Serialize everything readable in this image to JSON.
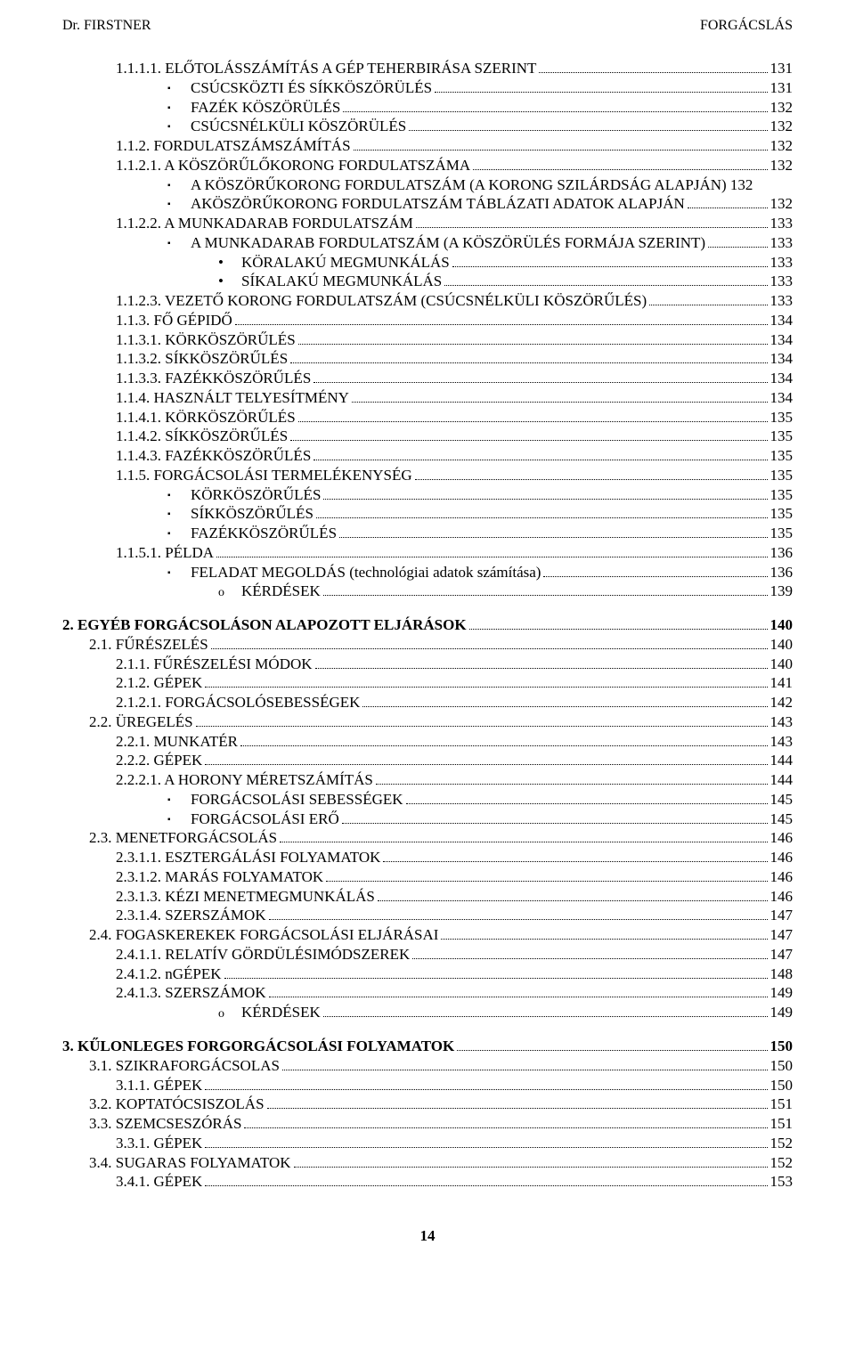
{
  "header": {
    "left": "Dr. FIRSTNER",
    "right": "FORGÁCSLÁS"
  },
  "footer": "14",
  "lines": [
    {
      "indent": "in0",
      "num": "1.1.1.1.",
      "title": "ELŐTOLÁSSZÁMÍTÁS A GÉP TEHERBIRÁSA SZERINT",
      "page": "131"
    },
    {
      "indent": "in2",
      "marker": "sq",
      "title": "CSÚCSKÖZTI ÉS SÍKKÖSZÖRÜLÉS",
      "page": "131"
    },
    {
      "indent": "in2",
      "marker": "sq",
      "title": "FAZÉK KÖSZÖRÜLÉS",
      "page": "132"
    },
    {
      "indent": "in2",
      "marker": "sq",
      "title": "CSÚCSNÉLKÜLI KÖSZÖRÜLÉS",
      "page": "132"
    },
    {
      "indent": "inB",
      "num": "1.1.2.",
      "title": "FORDULATSZÁMSZÁMÍTÁS",
      "page": "132"
    },
    {
      "indent": "in0",
      "num": "1.1.2.1.",
      "title": "A KÖSZÖRŰLŐKORONG FORDULATSZÁMA",
      "page": "132"
    },
    {
      "indent": "in2",
      "marker": "sq",
      "title": "A KÖSZÖRŰKORONG FORDULATSZÁM (A KORONG SZILÁRDSÁG   ALAPJÁN) 132",
      "nopage": true
    },
    {
      "indent": "in2",
      "marker": "sq",
      "title": "AKÖSZÖRŰKORONG FORDULATSZÁM TÁBLÁZATI ADATOK ALAPJÁN",
      "page": "132"
    },
    {
      "indent": "in0",
      "num": "1.1.2.2.",
      "title": "A MUNKADARAB FORDULATSZÁM",
      "page": "133"
    },
    {
      "indent": "in2",
      "marker": "sq",
      "title": "A MUNKADARAB FORDULATSZÁM (A KÖSZÖRÜLÉS FORMÁJA SZERINT)",
      "page": "133"
    },
    {
      "indent": "in4",
      "marker": "bul",
      "title": "KÖRALAKÚ MEGMUNKÁLÁS",
      "page": "133"
    },
    {
      "indent": "in4",
      "marker": "bul",
      "title": "SÍKALAKÚ MEGMUNKÁLÁS",
      "page": "133"
    },
    {
      "indent": "in0",
      "num": "1.1.2.3.",
      "title": "VEZETŐ KORONG FORDULATSZÁM (CSÚCSNÉLKÜLI KÖSZÖRŰLÉS)",
      "page": "133"
    },
    {
      "indent": "inB",
      "num": "1.1.3.",
      "title": "FŐ GÉPIDŐ",
      "page": "134"
    },
    {
      "indent": "in0",
      "num": "1.1.3.1.",
      "title": "KÖRKÖSZÖRŰLÉS",
      "page": "134"
    },
    {
      "indent": "in0",
      "num": "1.1.3.2.",
      "title": "SÍKKÖSZÖRŰLÉS",
      "page": "134"
    },
    {
      "indent": "in0",
      "num": "1.1.3.3.",
      "title": "FAZÉKKÖSZÖRŰLÉS",
      "page": "134"
    },
    {
      "indent": "inB",
      "num": "1.1.4.",
      "title": "HASZNÁLT TELYESÍTMÉNY",
      "page": "134"
    },
    {
      "indent": "in0",
      "num": "1.1.4.1.",
      "title": "KÖRKÖSZÖRŰLÉS",
      "page": "135"
    },
    {
      "indent": "in0",
      "num": "1.1.4.2.",
      "title": "SÍKKÖSZÖRŰLÉS",
      "page": "135"
    },
    {
      "indent": "in0",
      "num": "1.1.4.3.",
      "title": "FAZÉKKÖSZÖRŰLÉS",
      "page": "135"
    },
    {
      "indent": "inB",
      "num": "1.1.5.",
      "title": "FORGÁCSOLÁSI TERMELÉKENYSÉG",
      "page": "135"
    },
    {
      "indent": "in2",
      "marker": "sq",
      "title": "KÖRKÖSZÖRŰLÉS",
      "page": "135"
    },
    {
      "indent": "in2",
      "marker": "sq",
      "title": "SÍKKÖSZÖRŰLÉS",
      "page": "135"
    },
    {
      "indent": "in2",
      "marker": "sq",
      "title": "FAZÉKKÖSZÖRŰLÉS",
      "page": "135"
    },
    {
      "indent": "in0",
      "num": "1.1.5.1.",
      "title": "PÉLDA",
      "page": "136"
    },
    {
      "indent": "in2",
      "marker": "sq",
      "title": "FELADAT MEGOLDÁS (technológiai adatok számítása)",
      "page": "136"
    },
    {
      "indent": "in4",
      "marker": "circ",
      "title": "KÉRDÉSEK",
      "page": "139"
    },
    {
      "gap": true
    },
    {
      "indent": "",
      "bold": true,
      "num": "2.",
      "title": "EGYÉB FORGÁCSOLÁSON ALAPOZOTT ELJÁRÁSOK",
      "page": "140"
    },
    {
      "indent": "inA",
      "num": "2.1.",
      "title": "FŰRÉSZELÉS",
      "page": "140"
    },
    {
      "indent": "inB",
      "num": "2.1.1.",
      "title": "FŰRÉSZELÉSI MÓDOK",
      "page": "140"
    },
    {
      "indent": "inB",
      "num": "2.1.2.",
      "title": "GÉPEK",
      "page": "141"
    },
    {
      "indent": "in0",
      "num": "2.1.2.1.",
      "title": "FORGÁCSOLÓSEBESSÉGEK",
      "page": "142"
    },
    {
      "indent": "inA",
      "num": "2.2.",
      "title": "ÜREGELÉS",
      "page": "143"
    },
    {
      "indent": "inB",
      "num": "2.2.1.",
      "title": "MUNKATÉR",
      "page": "143"
    },
    {
      "indent": "inB",
      "num": "2.2.2.",
      "title": "GÉPEK",
      "page": "144"
    },
    {
      "indent": "in0",
      "num": "2.2.2.1.",
      "title": "A HORONY MÉRETSZÁMÍTÁS",
      "page": "144"
    },
    {
      "indent": "in2",
      "marker": "sq",
      "title": "FORGÁCSOLÁSI SEBESSÉGEK",
      "page": "145"
    },
    {
      "indent": "in2",
      "marker": "sq",
      "title": "FORGÁCSOLÁSI ERŐ",
      "page": "145"
    },
    {
      "indent": "inA",
      "num": "2.3.",
      "title": "MENETFORGÁCSOLÁS",
      "page": "146"
    },
    {
      "indent": "in0",
      "num": "2.3.1.1.",
      "title": "ESZTERGÁLÁSI FOLYAMATOK",
      "page": "146"
    },
    {
      "indent": "in0",
      "num": "2.3.1.2.",
      "title": "MARÁS FOLYAMATOK",
      "page": "146"
    },
    {
      "indent": "in0",
      "num": "2.3.1.3.",
      "title": "KÉZI MENETMEGMUNKÁLÁS",
      "page": "146"
    },
    {
      "indent": "in0",
      "num": "2.3.1.4.",
      "title": "SZERSZÁMOK",
      "page": "147"
    },
    {
      "indent": "inA",
      "num": "2.4.",
      "title": "FOGASKEREKEK FORGÁCSOLÁSI ELJÁRÁSAI",
      "page": "147"
    },
    {
      "indent": "in0",
      "num": "2.4.1.1.",
      "title": "RELATÍV GÖRDÜLÉSIMÓDSZEREK",
      "page": "147"
    },
    {
      "indent": "in0",
      "num": "2.4.1.2.",
      "title": "nGÉPEK",
      "page": "148"
    },
    {
      "indent": "in0",
      "num": "2.4.1.3.",
      "title": "SZERSZÁMOK",
      "page": "149"
    },
    {
      "indent": "in4",
      "marker": "circ",
      "title": "KÉRDÉSEK",
      "page": "149"
    },
    {
      "gap": true
    },
    {
      "indent": "",
      "bold": true,
      "num": "3.",
      "title": "KŰLONLEGES FORGORGÁCSOLÁSI FOLYAMATOK",
      "page": "150"
    },
    {
      "indent": "inA",
      "num": "3.1.",
      "title": "SZIKRAFORGÁCSOLAS",
      "page": "150"
    },
    {
      "indent": "inB",
      "num": "3.1.1.",
      "title": "GÉPEK",
      "page": "150"
    },
    {
      "indent": "inA",
      "num": "3.2.",
      "title": "KOPTATÓCSISZOLÁS",
      "page": "151"
    },
    {
      "indent": "inA",
      "num": "3.3.",
      "title": "SZEMCSESZÓRÁS",
      "page": "151"
    },
    {
      "indent": "inB",
      "num": "3.3.1.",
      "title": "GÉPEK",
      "page": "152"
    },
    {
      "indent": "inA",
      "num": "3.4.",
      "title": "SUGARAS FOLYAMATOK",
      "page": "152"
    },
    {
      "indent": "inB",
      "num": "3.4.1.",
      "title": "GÉPEK",
      "page": "153"
    }
  ]
}
